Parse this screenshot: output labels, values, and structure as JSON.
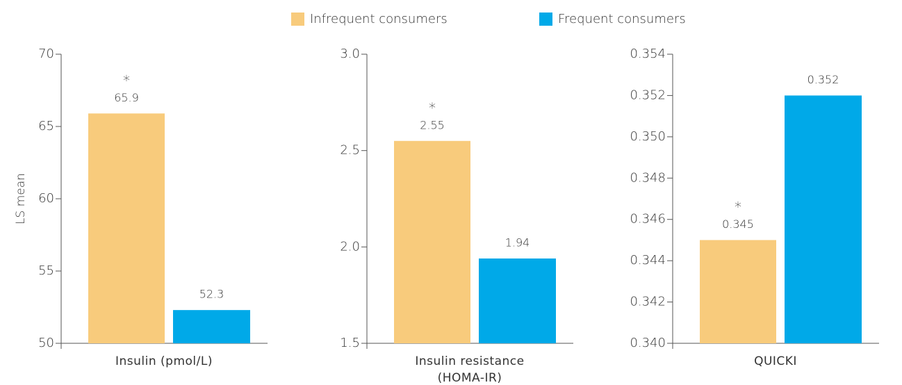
{
  "chart_data": [
    {
      "type": "bar",
      "ylabel": "LS mean",
      "categories": [
        "Insulin (pmol/L)"
      ],
      "series": [
        {
          "name": "Infrequent consumers",
          "color": "#f8cb7c",
          "values": [
            65.9
          ],
          "marker_labels": [
            "*"
          ]
        },
        {
          "name": "Frequent consumers",
          "color": "#00a9e8",
          "values": [
            52.3
          ],
          "marker_labels": [
            null
          ]
        }
      ],
      "ylim": [
        50,
        70
      ],
      "yticks": [
        50,
        55,
        60,
        65,
        70
      ]
    },
    {
      "type": "bar",
      "categories": [
        "Insulin resistance (HOMA-IR)"
      ],
      "series": [
        {
          "name": "Infrequent consumers",
          "color": "#f8cb7c",
          "values": [
            2.55
          ],
          "marker_labels": [
            "*"
          ]
        },
        {
          "name": "Frequent consumers",
          "color": "#00a9e8",
          "values": [
            1.94
          ],
          "marker_labels": [
            null
          ]
        }
      ],
      "ylim": [
        1.5,
        3.0
      ],
      "yticks": [
        1.5,
        {
          "value": 2,
          "label": "2.0"
        },
        2.5,
        {
          "value": 3,
          "label": "3.0"
        }
      ]
    },
    {
      "type": "bar",
      "categories": [
        "QUICKI"
      ],
      "series": [
        {
          "name": "Infrequent consumers",
          "color": "#f8cb7c",
          "values": [
            0.345
          ],
          "marker_labels": [
            "*"
          ]
        },
        {
          "name": "Frequent consumers",
          "color": "#00a9e8",
          "values": [
            0.352
          ],
          "marker_labels": [
            null
          ]
        }
      ],
      "ylim": [
        0.34,
        0.354
      ],
      "yticks": [
        {
          "value": 0.34,
          "label": "0.340"
        },
        0.342,
        0.344,
        0.346,
        0.348,
        {
          "value": 0.35,
          "label": "0.350"
        },
        0.352,
        0.354
      ]
    }
  ]
}
